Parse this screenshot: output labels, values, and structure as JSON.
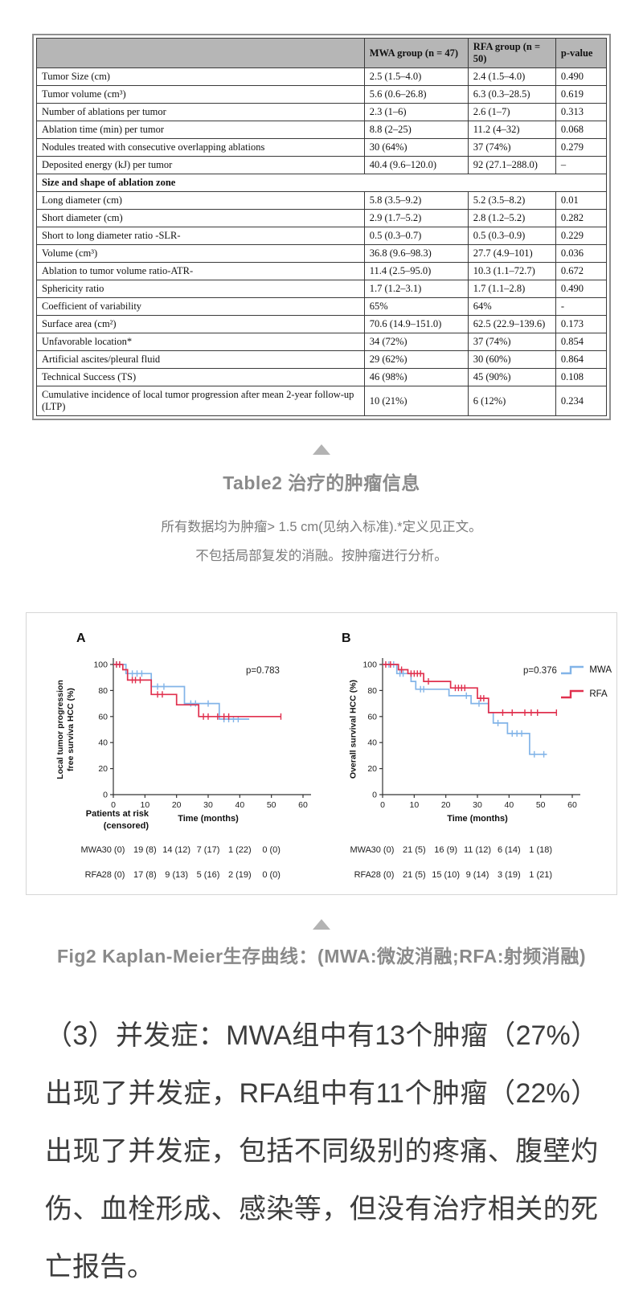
{
  "table": {
    "columns": [
      "",
      "MWA group (n = 47)",
      "RFA group (n = 50)",
      "p-value"
    ],
    "rows": [
      {
        "label": "Tumor Size (cm)",
        "mwa": "2.5 (1.5–4.0)",
        "rfa": "2.4 (1.5–4.0)",
        "p": "0.490"
      },
      {
        "label": "Tumor volume (cm³)",
        "mwa": "5.6 (0.6–26.8)",
        "rfa": "6.3 (0.3–28.5)",
        "p": "0.619"
      },
      {
        "label": "Number of ablations per tumor",
        "mwa": "2.3 (1–6)",
        "rfa": "2.6 (1–7)",
        "p": "0.313"
      },
      {
        "label": "Ablation time (min) per tumor",
        "mwa": "8.8 (2–25)",
        "rfa": "11.2 (4–32)",
        "p": "0.068"
      },
      {
        "label": "Nodules treated with consecutive overlapping ablations",
        "mwa": "30 (64%)",
        "rfa": "37 (74%)",
        "p": "0.279"
      },
      {
        "label": "Deposited energy (kJ) per tumor",
        "mwa": "40.4 (9.6–120.0)",
        "rfa": "92 (27.1–288.0)",
        "p": "–"
      },
      {
        "label": "Size and shape of ablation zone",
        "section": true
      },
      {
        "label": "Long diameter (cm)",
        "mwa": "5.8 (3.5–9.2)",
        "rfa": "5.2 (3.5–8.2)",
        "p": "0.01"
      },
      {
        "label": "Short diameter (cm)",
        "mwa": "2.9 (1.7–5.2)",
        "rfa": "2.8 (1.2–5.2)",
        "p": "0.282"
      },
      {
        "label": "Short to long diameter ratio -SLR-",
        "mwa": "0.5 (0.3–0.7)",
        "rfa": "0.5 (0.3–0.9)",
        "p": "0.229"
      },
      {
        "label": "Volume (cm³)",
        "mwa": "36.8 (9.6–98.3)",
        "rfa": "27.7 (4.9–101)",
        "p": "0.036"
      },
      {
        "label": "Ablation to tumor volume ratio-ATR-",
        "mwa": "11.4 (2.5–95.0)",
        "rfa": "10.3 (1.1–72.7)",
        "p": "0.672"
      },
      {
        "label": "Sphericity ratio",
        "mwa": "1.7 (1.2–3.1)",
        "rfa": "1.7 (1.1–2.8)",
        "p": "0.490"
      },
      {
        "label": "Coefficient of variability",
        "mwa": "65%",
        "rfa": "64%",
        "p": "-"
      },
      {
        "label": "Surface area (cm²)",
        "mwa": "70.6 (14.9–151.0)",
        "rfa": "62.5 (22.9–139.6)",
        "p": "0.173"
      },
      {
        "label": "Unfavorable location*",
        "mwa": "34 (72%)",
        "rfa": "37 (74%)",
        "p": "0.854"
      },
      {
        "label": "Artificial ascites/pleural fluid",
        "mwa": "29 (62%)",
        "rfa": "30 (60%)",
        "p": "0.864"
      },
      {
        "label": "Technical Success (TS)",
        "mwa": "46 (98%)",
        "rfa": "45 (90%)",
        "p": "0.108"
      },
      {
        "label": "Cumulative incidence of local tumor progression after mean 2-year follow-up (LTP)",
        "mwa": "10 (21%)",
        "rfa": "6 (12%)",
        "p": "0.234"
      }
    ]
  },
  "table_caption": {
    "title": "Table2 治疗的肿瘤信息",
    "notes": [
      "所有数据均为肿瘤> 1.5 cm(见纳入标准).*定义见正文。",
      "不包括局部复发的消融。按肿瘤进行分析。"
    ]
  },
  "figure_caption": {
    "title": "Fig2 Kaplan-Meier生存曲线：(MWA:微波消融;RFA:射频消融)"
  },
  "paragraph": "（3）并发症：MWA组中有13个肿瘤（27%）出现了并发症，RFA组中有11个肿瘤（22%）出现了并发症，包括不同级别的疼痛、腹壁灼伤、血栓形成、感染等，但没有治疗相关的死亡报告。",
  "colors": {
    "mwa": "#82b4e8",
    "rfa": "#e0304e",
    "axis": "#333333"
  },
  "chart_data": [
    {
      "id": "A",
      "type": "line",
      "panel_label": "A",
      "p_value": "p=0.783",
      "ylabel_lines": [
        "Local tumor progression",
        "free surviva HCC (%)"
      ],
      "xlabel": "Time (months)",
      "xlim": [
        0,
        60
      ],
      "ylim": [
        0,
        100
      ],
      "xticks": [
        0,
        10,
        20,
        30,
        40,
        50,
        60
      ],
      "yticks": [
        0,
        20,
        40,
        60,
        80,
        100
      ],
      "legend": false,
      "risk_header": [
        "Patients at risk",
        "(censored)"
      ],
      "series": [
        {
          "name": "MWA",
          "color": "#82b4e8",
          "points": [
            [
              0,
              100
            ],
            [
              4,
              100
            ],
            [
              4,
              93
            ],
            [
              12,
              93
            ],
            [
              12,
              83
            ],
            [
              22.5,
              83
            ],
            [
              22.5,
              70
            ],
            [
              33.5,
              70
            ],
            [
              33.5,
              58
            ],
            [
              43,
              58
            ]
          ],
          "censors": [
            [
              1,
              100
            ],
            [
              2,
              100
            ],
            [
              6,
              93
            ],
            [
              7.5,
              93
            ],
            [
              9,
              93
            ],
            [
              14,
              83
            ],
            [
              16,
              83
            ],
            [
              24.5,
              70
            ],
            [
              26,
              70
            ],
            [
              30,
              70
            ],
            [
              35,
              58
            ],
            [
              36.5,
              58
            ],
            [
              38,
              58
            ],
            [
              39.5,
              58
            ]
          ]
        },
        {
          "name": "RFA",
          "color": "#e0304e",
          "points": [
            [
              0,
              100
            ],
            [
              3,
              100
            ],
            [
              3,
              96
            ],
            [
              4.5,
              96
            ],
            [
              4.5,
              88
            ],
            [
              12,
              88
            ],
            [
              12,
              77
            ],
            [
              20,
              77
            ],
            [
              20,
              69
            ],
            [
              27,
              69
            ],
            [
              27,
              60
            ],
            [
              53,
              60
            ]
          ],
          "censors": [
            [
              1,
              100
            ],
            [
              2,
              100
            ],
            [
              6,
              88
            ],
            [
              7,
              88
            ],
            [
              8.5,
              88
            ],
            [
              14,
              77
            ],
            [
              15.5,
              77
            ],
            [
              28.5,
              60
            ],
            [
              30,
              60
            ],
            [
              33,
              60
            ],
            [
              35,
              60
            ],
            [
              36.5,
              60
            ],
            [
              53,
              60
            ]
          ]
        }
      ],
      "risk_table": {
        "times": [
          0,
          10,
          20,
          30,
          40,
          50
        ],
        "rows": [
          {
            "name": "MWA",
            "values": [
              "30 (0)",
              "19 (8)",
              "14 (12)",
              "7 (17)",
              "1 (22)",
              "0 (0)"
            ]
          },
          {
            "name": "RFA",
            "values": [
              "28 (0)",
              "17 (8)",
              "9 (13)",
              "5 (16)",
              "2 (19)",
              "0 (0)"
            ]
          }
        ]
      }
    },
    {
      "id": "B",
      "type": "line",
      "panel_label": "B",
      "p_value": "p=0.376",
      "ylabel_lines": [
        "Overall survival HCC (%)"
      ],
      "xlabel": "Time (months)",
      "xlim": [
        0,
        60
      ],
      "ylim": [
        0,
        100
      ],
      "xticks": [
        0,
        10,
        20,
        30,
        40,
        50,
        60
      ],
      "yticks": [
        0,
        20,
        40,
        60,
        80,
        100
      ],
      "legend": true,
      "risk_header": [],
      "series": [
        {
          "name": "MWA",
          "color": "#82b4e8",
          "points": [
            [
              0,
              100
            ],
            [
              4.5,
              100
            ],
            [
              4.5,
              93
            ],
            [
              9,
              93
            ],
            [
              9,
              87
            ],
            [
              10.5,
              87
            ],
            [
              10.5,
              81
            ],
            [
              21,
              81
            ],
            [
              21,
              76
            ],
            [
              28,
              76
            ],
            [
              28,
              70
            ],
            [
              33.5,
              70
            ],
            [
              33.5,
              63
            ],
            [
              35,
              63
            ],
            [
              35,
              55
            ],
            [
              39.5,
              55
            ],
            [
              39.5,
              47
            ],
            [
              46.5,
              47
            ],
            [
              46.5,
              31
            ],
            [
              52,
              31
            ]
          ],
          "censors": [
            [
              2,
              100
            ],
            [
              3.5,
              100
            ],
            [
              5.5,
              93
            ],
            [
              6.5,
              93
            ],
            [
              12,
              81
            ],
            [
              13,
              81
            ],
            [
              26.5,
              76
            ],
            [
              30.5,
              70
            ],
            [
              36.5,
              55
            ],
            [
              41,
              47
            ],
            [
              42.5,
              47
            ],
            [
              44,
              47
            ],
            [
              48,
              31
            ],
            [
              51,
              31
            ]
          ]
        },
        {
          "name": "RFA",
          "color": "#e0304e",
          "points": [
            [
              0,
              100
            ],
            [
              5,
              100
            ],
            [
              5,
              96
            ],
            [
              8,
              96
            ],
            [
              8,
              93
            ],
            [
              13,
              93
            ],
            [
              13,
              87
            ],
            [
              21.5,
              87
            ],
            [
              21.5,
              82
            ],
            [
              30,
              82
            ],
            [
              30,
              74
            ],
            [
              33.5,
              74
            ],
            [
              33.5,
              63
            ],
            [
              55,
              63
            ]
          ],
          "censors": [
            [
              1,
              100
            ],
            [
              2.5,
              100
            ],
            [
              6,
              96
            ],
            [
              9,
              93
            ],
            [
              10,
              93
            ],
            [
              11,
              93
            ],
            [
              12,
              93
            ],
            [
              14.5,
              87
            ],
            [
              23,
              82
            ],
            [
              24,
              82
            ],
            [
              25,
              82
            ],
            [
              26,
              82
            ],
            [
              31,
              74
            ],
            [
              32,
              74
            ],
            [
              38,
              63
            ],
            [
              41,
              63
            ],
            [
              45,
              63
            ],
            [
              47,
              63
            ],
            [
              49,
              63
            ],
            [
              55,
              63
            ]
          ]
        }
      ],
      "risk_table": {
        "times": [
          0,
          10,
          20,
          30,
          40,
          50
        ],
        "rows": [
          {
            "name": "MWA",
            "values": [
              "30 (0)",
              "21 (5)",
              "16 (9)",
              "11 (12)",
              "6 (14)",
              "1 (18)"
            ]
          },
          {
            "name": "RFA",
            "values": [
              "28 (0)",
              "21 (5)",
              "15 (10)",
              "9 (14)",
              "3 (19)",
              "1 (21)"
            ]
          }
        ]
      }
    }
  ]
}
